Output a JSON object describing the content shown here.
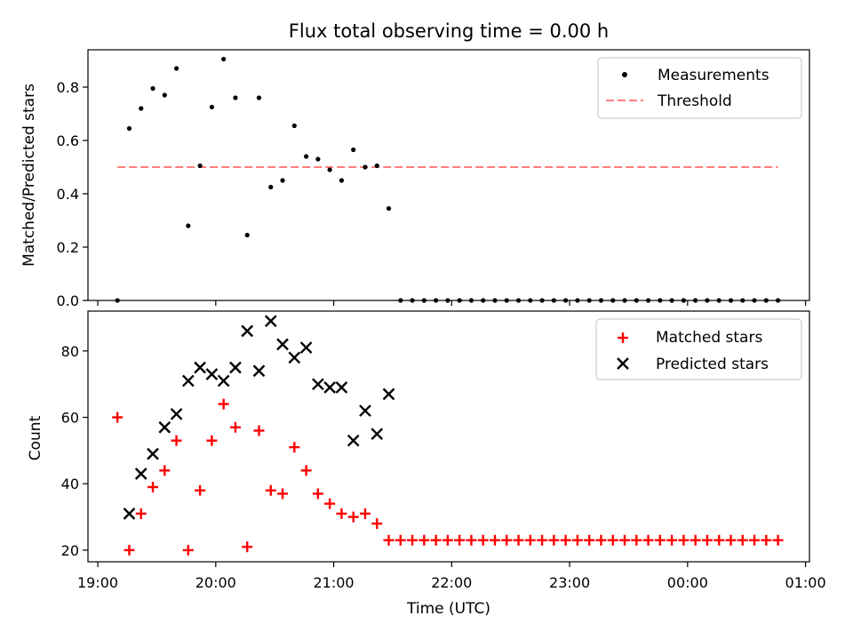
{
  "chart_data": [
    {
      "type": "scatter",
      "title": "Flux total observing time = 0.00 h",
      "xlabel": "",
      "ylabel": "Matched/Predicted stars",
      "xlim": [
        "18:55",
        "01:02"
      ],
      "ylim": [
        0,
        0.94
      ],
      "yticks": [
        0.0,
        0.2,
        0.4,
        0.6,
        0.8
      ],
      "ytick_labels": [
        "0.0",
        "0.2",
        "0.4",
        "0.6",
        "0.8"
      ],
      "legend_position": "top-right",
      "threshold": {
        "name": "Threshold",
        "value": 0.5,
        "x_start": "19:10",
        "x_end": "00:46",
        "color": "#ff7f7f"
      },
      "series": [
        {
          "name": "Measurements",
          "marker": "dot",
          "color": "#000000",
          "x": [
            "19:10",
            "19:16",
            "19:22",
            "19:28",
            "19:34",
            "19:40",
            "19:46",
            "19:52",
            "19:58",
            "20:04",
            "20:10",
            "20:16",
            "20:22",
            "20:28",
            "20:34",
            "20:40",
            "20:46",
            "20:52",
            "20:58",
            "21:04",
            "21:10",
            "21:16",
            "21:22",
            "21:28",
            "21:34",
            "21:40",
            "21:46",
            "21:52",
            "21:58",
            "22:04",
            "22:10",
            "22:16",
            "22:22",
            "22:28",
            "22:34",
            "22:40",
            "22:46",
            "22:52",
            "22:58",
            "23:04",
            "23:10",
            "23:16",
            "23:22",
            "23:28",
            "23:34",
            "23:40",
            "23:46",
            "23:52",
            "23:58",
            "00:04",
            "00:10",
            "00:16",
            "00:22",
            "00:28",
            "00:34",
            "00:40",
            "00:46"
          ],
          "y": [
            0.0,
            0.645,
            0.72,
            0.795,
            0.77,
            0.87,
            0.28,
            0.505,
            0.725,
            0.905,
            0.76,
            0.245,
            0.76,
            0.425,
            0.45,
            0.655,
            0.54,
            0.53,
            0.49,
            0.45,
            0.565,
            0.5,
            0.505,
            0.345,
            0.0,
            0.0,
            0.0,
            0.0,
            0.0,
            0.0,
            0.0,
            0.0,
            0.0,
            0.0,
            0.0,
            0.0,
            0.0,
            0.0,
            0.0,
            0.0,
            0.0,
            0.0,
            0.0,
            0.0,
            0.0,
            0.0,
            0.0,
            0.0,
            0.0,
            0.0,
            0.0,
            0.0,
            0.0,
            0.0,
            0.0,
            0.0,
            0.0
          ]
        }
      ]
    },
    {
      "type": "scatter",
      "title": "",
      "xlabel": "Time (UTC)",
      "ylabel": "Count",
      "xlim": [
        "18:55",
        "01:02"
      ],
      "ylim": [
        16.5,
        92
      ],
      "yticks": [
        20,
        40,
        60,
        80
      ],
      "ytick_labels": [
        "20",
        "40",
        "60",
        "80"
      ],
      "xticks": [
        "19:00",
        "20:00",
        "21:00",
        "22:00",
        "23:00",
        "00:00",
        "01:00"
      ],
      "xtick_labels": [
        "19:00",
        "20:00",
        "21:00",
        "22:00",
        "23:00",
        "00:00",
        "01:00"
      ],
      "legend_position": "top-right",
      "series": [
        {
          "name": "Matched stars",
          "marker": "plus",
          "color": "#ff0000",
          "x": [
            "19:10",
            "19:16",
            "19:22",
            "19:28",
            "19:34",
            "19:40",
            "19:46",
            "19:52",
            "19:58",
            "20:04",
            "20:10",
            "20:16",
            "20:22",
            "20:28",
            "20:34",
            "20:40",
            "20:46",
            "20:52",
            "20:58",
            "21:04",
            "21:10",
            "21:16",
            "21:22",
            "21:28",
            "21:34",
            "21:40",
            "21:46",
            "21:52",
            "21:58",
            "22:04",
            "22:10",
            "22:16",
            "22:22",
            "22:28",
            "22:34",
            "22:40",
            "22:46",
            "22:52",
            "22:58",
            "23:04",
            "23:10",
            "23:16",
            "23:22",
            "23:28",
            "23:34",
            "23:40",
            "23:46",
            "23:52",
            "23:58",
            "00:04",
            "00:10",
            "00:16",
            "00:22",
            "00:28",
            "00:34",
            "00:40",
            "00:46"
          ],
          "y": [
            60,
            20,
            31,
            39,
            44,
            53,
            20,
            38,
            53,
            64,
            57,
            21,
            56,
            38,
            37,
            51,
            44,
            37,
            34,
            31,
            30,
            31,
            28,
            23,
            23,
            23,
            23,
            23,
            23,
            23,
            23,
            23,
            23,
            23,
            23,
            23,
            23,
            23,
            23,
            23,
            23,
            23,
            23,
            23,
            23,
            23,
            23,
            23,
            23,
            23,
            23,
            23,
            23,
            23,
            23,
            23,
            23
          ]
        },
        {
          "name": "Predicted stars",
          "marker": "x",
          "color": "#000000",
          "x": [
            "19:16",
            "19:22",
            "19:28",
            "19:34",
            "19:40",
            "19:46",
            "19:52",
            "19:58",
            "20:04",
            "20:10",
            "20:16",
            "20:22",
            "20:28",
            "20:34",
            "20:40",
            "20:46",
            "20:52",
            "20:58",
            "21:04",
            "21:10",
            "21:16",
            "21:22",
            "21:28"
          ],
          "y": [
            31,
            43,
            49,
            57,
            61,
            71,
            75,
            73,
            71,
            75,
            86,
            74,
            89,
            82,
            78,
            81,
            70,
            69,
            69,
            53,
            62,
            55,
            67
          ]
        }
      ]
    }
  ]
}
